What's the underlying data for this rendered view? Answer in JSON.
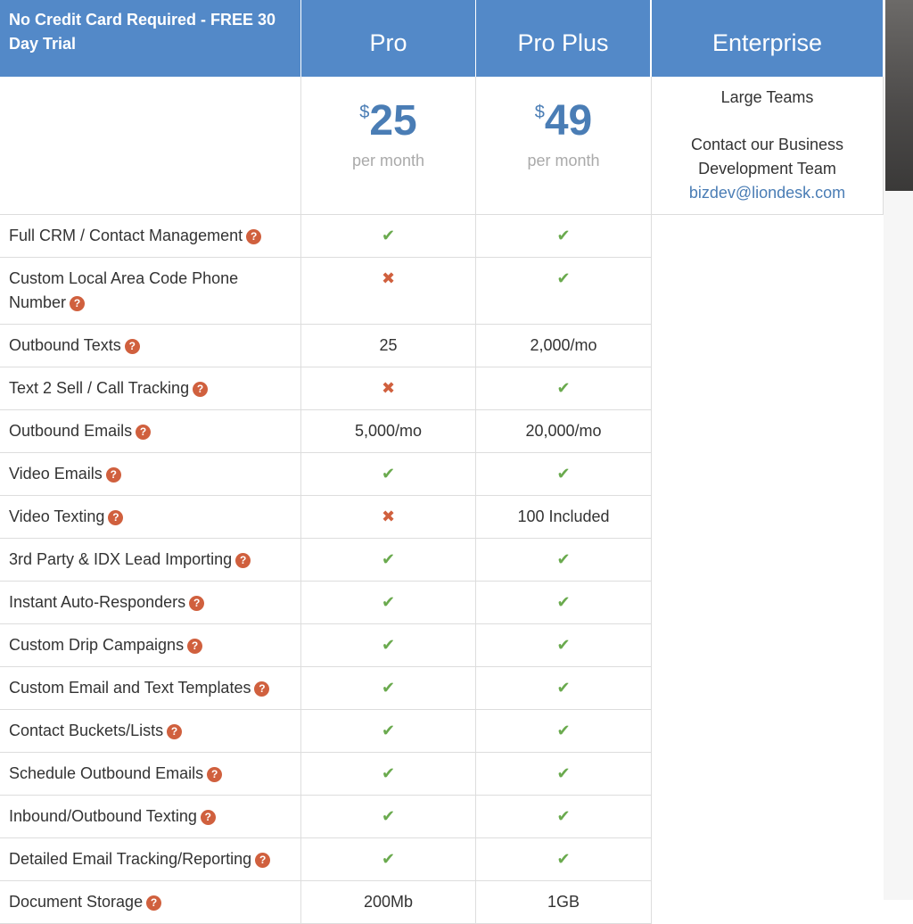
{
  "header": {
    "promo": "No Credit Card Required - FREE 30 Day Trial",
    "plans": [
      "Pro",
      "Pro Plus",
      "Enterprise"
    ]
  },
  "pricing": {
    "pro": {
      "currency": "$",
      "amount": "25",
      "period": "per month"
    },
    "pro_plus": {
      "currency": "$",
      "amount": "49",
      "period": "per month"
    },
    "enterprise": {
      "line1": "Large Teams",
      "line2": "Contact our Business Development Team",
      "email": "bizdev@liondesk.com"
    }
  },
  "colors": {
    "header_bg": "#5389c8",
    "check": "#6aaa4e",
    "cross": "#d0603e",
    "help_icon": "#d0603e",
    "price": "#4a7db5"
  },
  "features": [
    {
      "name": "Full CRM / Contact Management",
      "pro": "check",
      "pro_plus": "check"
    },
    {
      "name": "Custom Local Area Code Phone Number",
      "pro": "cross",
      "pro_plus": "check"
    },
    {
      "name": "Outbound Texts",
      "pro": "25",
      "pro_plus": "2,000/mo"
    },
    {
      "name": "Text 2 Sell / Call Tracking",
      "pro": "cross",
      "pro_plus": "check"
    },
    {
      "name": "Outbound Emails",
      "pro": "5,000/mo",
      "pro_plus": "20,000/mo"
    },
    {
      "name": "Video Emails",
      "pro": "check",
      "pro_plus": "check"
    },
    {
      "name": "Video Texting",
      "pro": "cross",
      "pro_plus": "100 Included"
    },
    {
      "name": "3rd Party & IDX Lead Importing",
      "pro": "check",
      "pro_plus": "check"
    },
    {
      "name": "Instant Auto-Responders",
      "pro": "check",
      "pro_plus": "check"
    },
    {
      "name": "Custom Drip Campaigns",
      "pro": "check",
      "pro_plus": "check"
    },
    {
      "name": "Custom Email and Text Templates",
      "pro": "check",
      "pro_plus": "check"
    },
    {
      "name": "Contact Buckets/Lists",
      "pro": "check",
      "pro_plus": "check"
    },
    {
      "name": "Schedule Outbound Emails",
      "pro": "check",
      "pro_plus": "check"
    },
    {
      "name": "Inbound/Outbound Texting",
      "pro": "check",
      "pro_plus": "check"
    },
    {
      "name": "Detailed Email Tracking/Reporting",
      "pro": "check",
      "pro_plus": "check"
    },
    {
      "name": "Document Storage",
      "pro": "200Mb",
      "pro_plus": "1GB"
    }
  ],
  "icons": {
    "help": "question-circle-icon",
    "check": "check-icon",
    "cross": "cross-icon"
  }
}
